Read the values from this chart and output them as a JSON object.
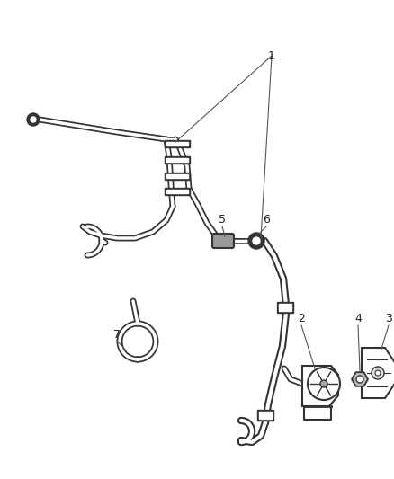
{
  "background_color": "#ffffff",
  "line_color": "#333333",
  "label_color": "#222222",
  "fig_width": 4.38,
  "fig_height": 5.33,
  "dpi": 100
}
